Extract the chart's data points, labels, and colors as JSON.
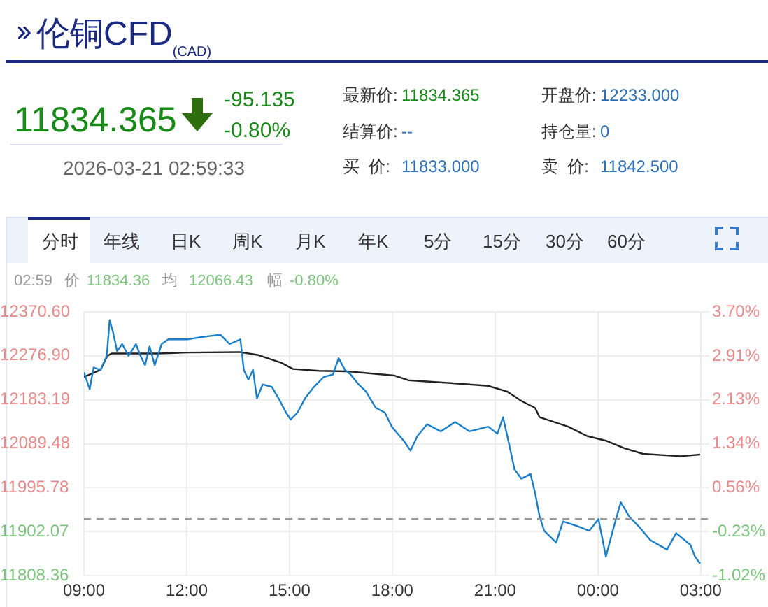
{
  "chart_data": {
    "type": "line",
    "title": "伦铜CFD",
    "subtitle": "(CAD)",
    "annotations": [
      "11834.365",
      "-95.135",
      "-0.80%",
      "2026-03-21 02:59:33",
      "最新价:",
      "11834.365",
      "结算价:",
      "--",
      "买  价:",
      "11833.000",
      "开盘价:",
      "12233.000",
      "持仓量:",
      "0",
      "卖  价:",
      "11842.500",
      "分时",
      "年线",
      "日K",
      "周K",
      "月K",
      "年K",
      "5分",
      "15分",
      "30分",
      "60分",
      "02:59",
      "价",
      "11834.36",
      "均",
      "12066.43",
      "幅",
      "-0.80%"
    ],
    "xlim": [
      "2026-03-20T09:00",
      "2026-03-21T03:15"
    ],
    "xticks": [
      {
        "value": "2026-03-20T09:00",
        "label": "09:00"
      },
      {
        "value": "2026-03-20T12:00",
        "label": "12:00"
      },
      {
        "value": "2026-03-20T15:00",
        "label": "15:00"
      },
      {
        "value": "2026-03-20T18:00",
        "label": "18:00"
      },
      {
        "value": "2026-03-20T21:00",
        "label": "21:00"
      },
      {
        "value": "2026-03-21T00:00",
        "label": "00:00"
      },
      {
        "value": "2026-03-21T03:00",
        "label": "03:00"
      }
    ],
    "ylim": [
      11808.36,
      12370.6
    ],
    "yticks": [
      {
        "value": 11808.36,
        "label": "11808.36"
      },
      {
        "value": 11902.07,
        "label": "11902.07"
      },
      {
        "value": 11995.78,
        "label": "11995.78"
      },
      {
        "value": 12089.48,
        "label": "12089.48"
      },
      {
        "value": 12183.19,
        "label": "12183.19"
      },
      {
        "value": 12276.9,
        "label": "12276.90"
      },
      {
        "value": 12370.6,
        "label": "12370.60"
      }
    ],
    "y2lim": [
      -1.02,
      3.7
    ],
    "y2ticks": [
      {
        "value": -1.02,
        "label": "-1.02%"
      },
      {
        "value": -0.23,
        "label": "-0.23%"
      },
      {
        "value": 0.56,
        "label": "0.56%"
      },
      {
        "value": 1.34,
        "label": "1.34%"
      },
      {
        "value": 2.13,
        "label": "2.13%"
      },
      {
        "value": 2.91,
        "label": "2.91%"
      },
      {
        "value": 3.7,
        "label": "3.70%"
      }
    ],
    "grid": true,
    "legend": false,
    "marker": "none",
    "line_style": "solid",
    "ref_lines": [
      {
        "axis": "y",
        "value": 11929.5,
        "color": "#999999",
        "line_style": "dashed"
      }
    ],
    "series": [
      {
        "color": "#1a7fc8",
        "x": [
          "2026-03-20T09:00",
          "2026-03-20T09:10",
          "2026-03-20T09:17",
          "2026-03-20T09:29",
          "2026-03-20T09:40",
          "2026-03-20T09:45",
          "2026-03-20T09:51",
          "2026-03-20T09:58",
          "2026-03-20T10:07",
          "2026-03-20T10:18",
          "2026-03-20T10:31",
          "2026-03-20T10:39",
          "2026-03-20T10:47",
          "2026-03-20T10:55",
          "2026-03-20T11:04",
          "2026-03-20T11:16",
          "2026-03-20T11:28",
          "2026-03-20T12:01",
          "2026-03-20T12:26",
          "2026-03-20T12:59",
          "2026-03-20T13:15",
          "2026-03-20T13:34",
          "2026-03-20T13:40",
          "2026-03-20T13:48",
          "2026-03-20T13:56",
          "2026-03-20T14:03",
          "2026-03-20T14:13",
          "2026-03-20T14:29",
          "2026-03-20T14:41",
          "2026-03-20T14:54",
          "2026-03-20T15:02",
          "2026-03-20T15:14",
          "2026-03-20T15:27",
          "2026-03-20T15:43",
          "2026-03-20T16:00",
          "2026-03-20T16:16",
          "2026-03-20T16:26",
          "2026-03-20T16:37",
          "2026-03-20T16:47",
          "2026-03-20T17:01",
          "2026-03-20T17:14",
          "2026-03-20T17:31",
          "2026-03-20T17:47",
          "2026-03-20T17:59",
          "2026-03-20T18:20",
          "2026-03-20T18:32",
          "2026-03-20T18:44",
          "2026-03-20T19:01",
          "2026-03-20T19:25",
          "2026-03-20T19:50",
          "2026-03-20T20:15",
          "2026-03-20T20:48",
          "2026-03-20T21:04",
          "2026-03-20T21:14",
          "2026-03-20T21:25",
          "2026-03-20T21:34",
          "2026-03-20T21:46",
          "2026-03-20T22:02",
          "2026-03-20T22:10",
          "2026-03-20T22:18",
          "2026-03-20T22:26",
          "2026-03-20T22:47",
          "2026-03-20T22:59",
          "2026-03-20T23:24",
          "2026-03-20T23:45",
          "2026-03-21T00:01",
          "2026-03-21T00:14",
          "2026-03-21T00:26",
          "2026-03-21T00:40",
          "2026-03-21T00:55",
          "2026-03-21T01:11",
          "2026-03-21T01:32",
          "2026-03-21T02:01",
          "2026-03-21T02:17",
          "2026-03-21T02:42",
          "2026-03-21T02:50",
          "2026-03-21T02:59"
        ],
        "values": [
          12242,
          12206,
          12252,
          12247,
          12277,
          12353,
          12327,
          12287,
          12302,
          12277,
          12302,
          12277,
          12257,
          12297,
          12257,
          12302,
          12312,
          12312,
          12317,
          12322,
          12302,
          12312,
          12247,
          12226,
          12247,
          12186,
          12216,
          12211,
          12186,
          12156,
          12141,
          12156,
          12186,
          12211,
          12232,
          12237,
          12272,
          12247,
          12237,
          12216,
          12201,
          12166,
          12156,
          12126,
          12096,
          12075,
          12106,
          12131,
          12116,
          12136,
          12116,
          12126,
          12111,
          12146,
          12086,
          12035,
          12015,
          12025,
          11985,
          11934,
          11904,
          11879,
          11924,
          11914,
          11904,
          11929,
          11849,
          11904,
          11965,
          11934,
          11914,
          11884,
          11864,
          11899,
          11874,
          11849,
          11834.36
        ]
      },
      {
        "color": "#222222",
        "x": [
          "2026-03-20T09:00",
          "2026-03-20T09:29",
          "2026-03-20T09:41",
          "2026-03-20T09:49",
          "2026-03-20T11:11",
          "2026-03-20T12:01",
          "2026-03-20T13:32",
          "2026-03-20T14:04",
          "2026-03-20T14:46",
          "2026-03-20T15:06",
          "2026-03-20T15:52",
          "2026-03-20T16:41",
          "2026-03-20T18:03",
          "2026-03-20T18:28",
          "2026-03-20T19:42",
          "2026-03-20T20:48",
          "2026-03-20T21:21",
          "2026-03-20T21:46",
          "2026-03-20T22:10",
          "2026-03-20T22:18",
          "2026-03-20T23:08",
          "2026-03-20T23:41",
          "2026-03-21T00:14",
          "2026-03-21T00:46",
          "2026-03-21T01:19",
          "2026-03-21T02:25",
          "2026-03-21T02:59"
        ],
        "values": [
          12232,
          12247,
          12277,
          12282,
          12282,
          12284,
          12285,
          12279,
          12262,
          12249,
          12245,
          12244,
          12235,
          12225,
          12219,
          12213,
          12201,
          12181,
          12166,
          12146,
          12126,
          12106,
          12096,
          12080,
          12068,
          12063,
          12066.43
        ]
      }
    ]
  }
}
